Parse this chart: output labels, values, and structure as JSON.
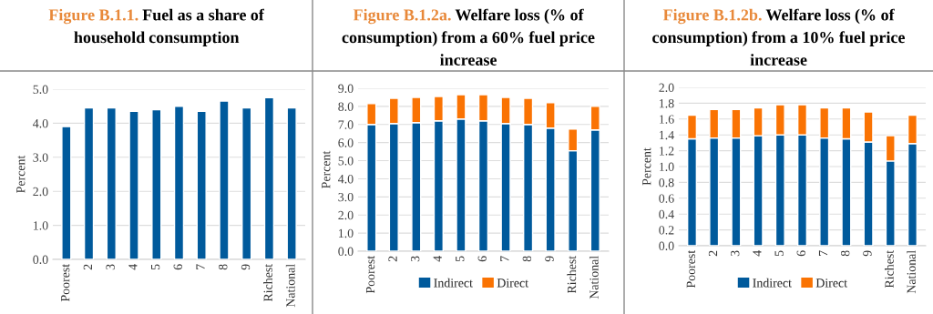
{
  "chart_data": [
    {
      "type": "bar",
      "title": "Figure B.1.1. Fuel as a share of household consumption",
      "ylabel": "Percent",
      "categories": [
        "Poorest",
        "2",
        "3",
        "4",
        "5",
        "6",
        "7",
        "8",
        "9",
        "Richest",
        "National"
      ],
      "series": [
        {
          "color": "#005a9c",
          "values": [
            3.9,
            4.45,
            4.45,
            4.35,
            4.4,
            4.5,
            4.35,
            4.65,
            4.45,
            4.75,
            4.45
          ]
        }
      ],
      "ylim": [
        0,
        5
      ],
      "yticks": [
        {
          "value": 0,
          "label": "0.0"
        },
        {
          "value": 1,
          "label": "1.0"
        },
        {
          "value": 2,
          "label": "2.0"
        },
        {
          "value": 3,
          "label": "3.0"
        },
        {
          "value": 4,
          "label": "4.0"
        },
        {
          "value": 5,
          "label": "5.0"
        }
      ],
      "grid": "y"
    },
    {
      "type": "bar",
      "title": "Figure B.1.2a. Welfare loss (% of consumption) from a 60% fuel price increase",
      "ylabel": "Percent",
      "categories": [
        "Poorest",
        "2",
        "3",
        "4",
        "5",
        "6",
        "7",
        "8",
        "9",
        "Richest",
        "National"
      ],
      "stacked": true,
      "series": [
        {
          "name": "Indirect",
          "color": "#005a9c",
          "values": [
            7.0,
            7.05,
            7.1,
            7.2,
            7.3,
            7.2,
            7.05,
            7.0,
            6.8,
            5.55,
            6.7
          ]
        },
        {
          "name": "Direct",
          "color": "#fa7303",
          "values": [
            1.15,
            1.4,
            1.4,
            1.35,
            1.35,
            1.45,
            1.45,
            1.45,
            1.4,
            1.2,
            1.3
          ]
        }
      ],
      "ylim": [
        0,
        9
      ],
      "yticks": [
        {
          "value": 0,
          "label": "0.0"
        },
        {
          "value": 1,
          "label": "1.0"
        },
        {
          "value": 2,
          "label": "2.0"
        },
        {
          "value": 3,
          "label": "3.0"
        },
        {
          "value": 4,
          "label": "4.0"
        },
        {
          "value": 5,
          "label": "5.0"
        },
        {
          "value": 6,
          "label": "6.0"
        },
        {
          "value": 7,
          "label": "7.0"
        },
        {
          "value": 8,
          "label": "8.0"
        },
        {
          "value": 9,
          "label": "9.0"
        }
      ],
      "grid": "y",
      "legend": "bottom"
    },
    {
      "type": "bar",
      "title": "Figure B.1.2b. Welfare loss (% of consumption) from a 10% fuel price increase",
      "ylabel": "Percent",
      "categories": [
        "Poorest",
        "2",
        "3",
        "4",
        "5",
        "6",
        "7",
        "8",
        "9",
        "Richest",
        "National"
      ],
      "stacked": true,
      "series": [
        {
          "name": "Indirect",
          "color": "#005a9c",
          "values": [
            1.35,
            1.36,
            1.36,
            1.39,
            1.4,
            1.4,
            1.36,
            1.35,
            1.31,
            1.07,
            1.29
          ]
        },
        {
          "name": "Direct",
          "color": "#fa7303",
          "values": [
            0.3,
            0.36,
            0.36,
            0.35,
            0.38,
            0.38,
            0.38,
            0.39,
            0.38,
            0.32,
            0.36
          ]
        }
      ],
      "ylim": [
        0,
        2
      ],
      "yticks": [
        {
          "value": 0,
          "label": "0.0"
        },
        {
          "value": 0.2,
          "label": "0.2"
        },
        {
          "value": 0.4,
          "label": "0.4"
        },
        {
          "value": 0.6,
          "label": "0.6"
        },
        {
          "value": 0.8,
          "label": "0.8"
        },
        {
          "value": 1.0,
          "label": "1.0"
        },
        {
          "value": 1.2,
          "label": "1.2"
        },
        {
          "value": 1.4,
          "label": "1.4"
        },
        {
          "value": 1.6,
          "label": "1.6"
        },
        {
          "value": 1.8,
          "label": "1.8"
        },
        {
          "value": 2.0,
          "label": "2.0"
        }
      ],
      "grid": "y",
      "legend": "bottom"
    }
  ]
}
